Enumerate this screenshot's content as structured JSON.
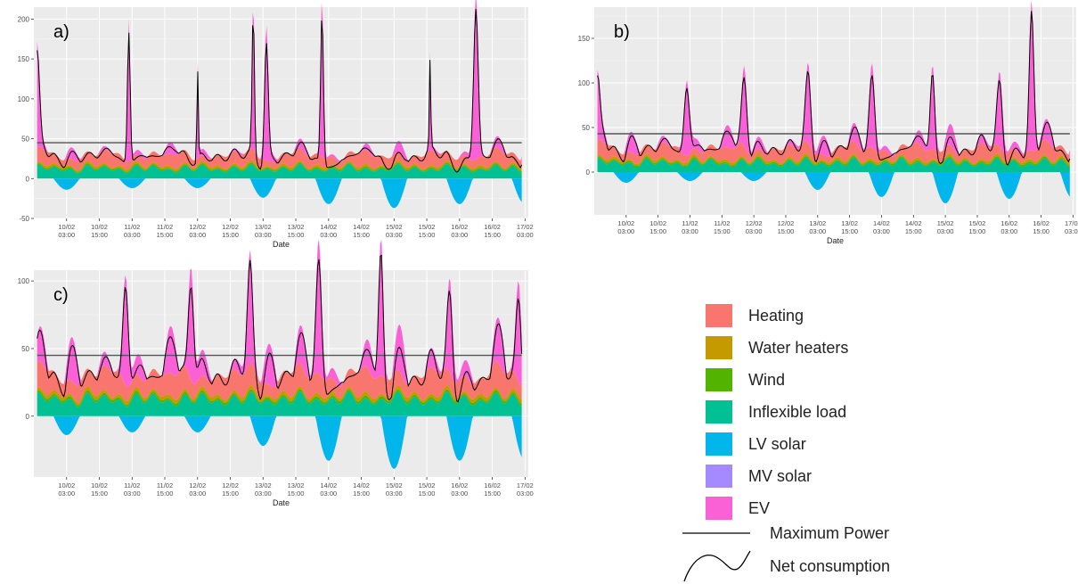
{
  "chart_data": [
    {
      "type": "area",
      "panel_label": "a)",
      "xlabel": "Date",
      "ylabel": "",
      "ylim": [
        -50,
        215
      ],
      "yticks": [
        -50,
        0,
        50,
        100,
        150,
        200
      ],
      "xticks": [
        {
          "t": 0.5,
          "label": [
            "10/02",
            "03:00"
          ]
        },
        {
          "t": 1.0,
          "label": [
            "10/02",
            "15:00"
          ]
        },
        {
          "t": 1.5,
          "label": [
            "11/02",
            "03:00"
          ]
        },
        {
          "t": 2.0,
          "label": [
            "11/02",
            "15:00"
          ]
        },
        {
          "t": 2.5,
          "label": [
            "12/02",
            "03:00"
          ]
        },
        {
          "t": 3.0,
          "label": [
            "12/02",
            "15:00"
          ]
        },
        {
          "t": 3.5,
          "label": [
            "13/02",
            "03:00"
          ]
        },
        {
          "t": 4.0,
          "label": [
            "13/02",
            "15:00"
          ]
        },
        {
          "t": 4.5,
          "label": [
            "14/02",
            "03:00"
          ]
        },
        {
          "t": 5.0,
          "label": [
            "14/02",
            "15:00"
          ]
        },
        {
          "t": 5.5,
          "label": [
            "15/02",
            "03:00"
          ]
        },
        {
          "t": 6.0,
          "label": [
            "15/02",
            "15:00"
          ]
        },
        {
          "t": 6.5,
          "label": [
            "16/02",
            "03:00"
          ]
        },
        {
          "t": 7.0,
          "label": [
            "16/02",
            "15:00"
          ]
        },
        {
          "t": 7.5,
          "label": [
            "17/02",
            "03:00"
          ]
        }
      ],
      "max_power": 45,
      "inflexible_base": 12,
      "heating_base": 13,
      "solar_min": [
        -14,
        -12,
        -12,
        -24,
        -32,
        -37,
        -32
      ],
      "ev_spikes": [
        [
          0.05,
          125,
          0.05
        ],
        [
          1.45,
          180,
          0.03
        ],
        [
          2.5,
          125,
          0.015
        ],
        [
          3.35,
          195,
          0.025
        ],
        [
          3.55,
          160,
          0.04
        ],
        [
          4.4,
          205,
          0.03
        ],
        [
          6.05,
          120,
          0.015
        ],
        [
          6.75,
          210,
          0.05
        ],
        [
          7.5,
          110,
          0.03
        ]
      ],
      "ev_secondary": 15,
      "series": [
        {
          "name": "Heating",
          "color": "#F8766D"
        },
        {
          "name": "Water heaters",
          "color": "#C49A00"
        },
        {
          "name": "Wind",
          "color": "#53B400"
        },
        {
          "name": "Inflexible load",
          "color": "#00C094"
        },
        {
          "name": "LV solar",
          "color": "#00B6EB"
        },
        {
          "name": "MV solar",
          "color": "#A58AFF"
        },
        {
          "name": "EV",
          "color": "#FB61D7"
        },
        {
          "name": "Maximum Power",
          "color": "#555555"
        },
        {
          "name": "Net consumption",
          "color": "#000000"
        }
      ]
    },
    {
      "type": "area",
      "panel_label": "b)",
      "xlabel": "Date",
      "ylabel": "",
      "ylim": [
        -48,
        185
      ],
      "yticks": [
        0,
        50,
        100,
        150
      ],
      "xticks": [
        {
          "t": 0.5,
          "label": [
            "10/02",
            "03:00"
          ]
        },
        {
          "t": 1.0,
          "label": [
            "10/02",
            "15:00"
          ]
        },
        {
          "t": 1.5,
          "label": [
            "11/02",
            "03:00"
          ]
        },
        {
          "t": 2.0,
          "label": [
            "11/02",
            "15:00"
          ]
        },
        {
          "t": 2.5,
          "label": [
            "12/02",
            "03:00"
          ]
        },
        {
          "t": 3.0,
          "label": [
            "12/02",
            "15:00"
          ]
        },
        {
          "t": 3.5,
          "label": [
            "13/02",
            "03:00"
          ]
        },
        {
          "t": 4.0,
          "label": [
            "13/02",
            "15:00"
          ]
        },
        {
          "t": 4.5,
          "label": [
            "14/02",
            "03:00"
          ]
        },
        {
          "t": 5.0,
          "label": [
            "14/02",
            "15:00"
          ]
        },
        {
          "t": 5.5,
          "label": [
            "15/02",
            "03:00"
          ]
        },
        {
          "t": 6.0,
          "label": [
            "15/02",
            "15:00"
          ]
        },
        {
          "t": 6.5,
          "label": [
            "16/02",
            "03:00"
          ]
        },
        {
          "t": 7.0,
          "label": [
            "16/02",
            "15:00"
          ]
        },
        {
          "t": 7.5,
          "label": [
            "17/02",
            "03:00"
          ]
        }
      ],
      "max_power": 43,
      "inflexible_base": 10,
      "heating_base": 12,
      "solar_min": [
        -12,
        -10,
        -10,
        -20,
        -28,
        -35,
        -30
      ],
      "ev_spikes": [
        [
          0.05,
          65,
          0.05
        ],
        [
          1.45,
          85,
          0.06
        ],
        [
          2.35,
          90,
          0.06
        ],
        [
          3.35,
          90,
          0.06
        ],
        [
          4.35,
          95,
          0.06
        ],
        [
          5.3,
          95,
          0.05
        ],
        [
          6.35,
          85,
          0.06
        ],
        [
          6.85,
          170,
          0.05
        ],
        [
          7.5,
          95,
          0.03
        ]
      ],
      "ev_secondary": 25,
      "series": [
        {
          "name": "Heating",
          "color": "#F8766D"
        },
        {
          "name": "Water heaters",
          "color": "#C49A00"
        },
        {
          "name": "Wind",
          "color": "#53B400"
        },
        {
          "name": "Inflexible load",
          "color": "#00C094"
        },
        {
          "name": "LV solar",
          "color": "#00B6EB"
        },
        {
          "name": "MV solar",
          "color": "#A58AFF"
        },
        {
          "name": "EV",
          "color": "#FB61D7"
        },
        {
          "name": "Maximum Power",
          "color": "#555555"
        },
        {
          "name": "Net consumption",
          "color": "#000000"
        }
      ]
    },
    {
      "type": "area",
      "panel_label": "c)",
      "xlabel": "Date",
      "ylabel": "",
      "ylim": [
        -45,
        108
      ],
      "yticks": [
        0,
        50,
        100
      ],
      "xticks": [
        {
          "t": 0.5,
          "label": [
            "10/02",
            "03:00"
          ]
        },
        {
          "t": 1.0,
          "label": [
            "10/02",
            "15:00"
          ]
        },
        {
          "t": 1.5,
          "label": [
            "11/02",
            "03:00"
          ]
        },
        {
          "t": 2.0,
          "label": [
            "11/02",
            "15:00"
          ]
        },
        {
          "t": 2.5,
          "label": [
            "12/02",
            "03:00"
          ]
        },
        {
          "t": 3.0,
          "label": [
            "12/02",
            "15:00"
          ]
        },
        {
          "t": 3.5,
          "label": [
            "13/02",
            "03:00"
          ]
        },
        {
          "t": 4.0,
          "label": [
            "13/02",
            "15:00"
          ]
        },
        {
          "t": 4.5,
          "label": [
            "14/02",
            "03:00"
          ]
        },
        {
          "t": 5.0,
          "label": [
            "14/02",
            "15:00"
          ]
        },
        {
          "t": 5.5,
          "label": [
            "15/02",
            "03:00"
          ]
        },
        {
          "t": 6.0,
          "label": [
            "15/02",
            "15:00"
          ]
        },
        {
          "t": 6.5,
          "label": [
            "16/02",
            "03:00"
          ]
        },
        {
          "t": 7.0,
          "label": [
            "16/02",
            "15:00"
          ]
        },
        {
          "t": 7.5,
          "label": [
            "17/02",
            "03:00"
          ]
        }
      ],
      "max_power": 45,
      "inflexible_base": 12,
      "heating_base": 14,
      "solar_min": [
        -14,
        -12,
        -12,
        -22,
        -33,
        -39,
        -33
      ],
      "ev_spikes": [
        [
          1.4,
          82,
          0.06
        ],
        [
          2.4,
          84,
          0.06
        ],
        [
          3.3,
          84,
          0.06
        ],
        [
          4.35,
          100,
          0.06
        ],
        [
          5.3,
          103,
          0.05
        ],
        [
          6.35,
          70,
          0.06
        ],
        [
          7.4,
          75,
          0.06
        ]
      ],
      "ev_secondary": 35,
      "series": [
        {
          "name": "Heating",
          "color": "#F8766D"
        },
        {
          "name": "Water heaters",
          "color": "#C49A00"
        },
        {
          "name": "Wind",
          "color": "#53B400"
        },
        {
          "name": "Inflexible load",
          "color": "#00C094"
        },
        {
          "name": "LV solar",
          "color": "#00B6EB"
        },
        {
          "name": "MV solar",
          "color": "#A58AFF"
        },
        {
          "name": "EV",
          "color": "#FB61D7"
        },
        {
          "name": "Maximum Power",
          "color": "#555555"
        },
        {
          "name": "Net consumption",
          "color": "#000000"
        }
      ]
    }
  ],
  "legend": {
    "items": [
      {
        "label": "Heating",
        "color": "#F8766D",
        "kind": "swatch"
      },
      {
        "label": "Water heaters",
        "color": "#C49A00",
        "kind": "swatch"
      },
      {
        "label": "Wind",
        "color": "#53B400",
        "kind": "swatch"
      },
      {
        "label": "Inflexible load",
        "color": "#00C094",
        "kind": "swatch"
      },
      {
        "label": "LV solar",
        "color": "#00B6EB",
        "kind": "swatch"
      },
      {
        "label": "MV solar",
        "color": "#A58AFF",
        "kind": "swatch"
      },
      {
        "label": "EV",
        "color": "#FB61D7",
        "kind": "swatch"
      },
      {
        "label": "Maximum Power",
        "color": "#000000",
        "kind": "line"
      },
      {
        "label": "Net consumption",
        "color": "#000000",
        "kind": "curve"
      }
    ]
  }
}
